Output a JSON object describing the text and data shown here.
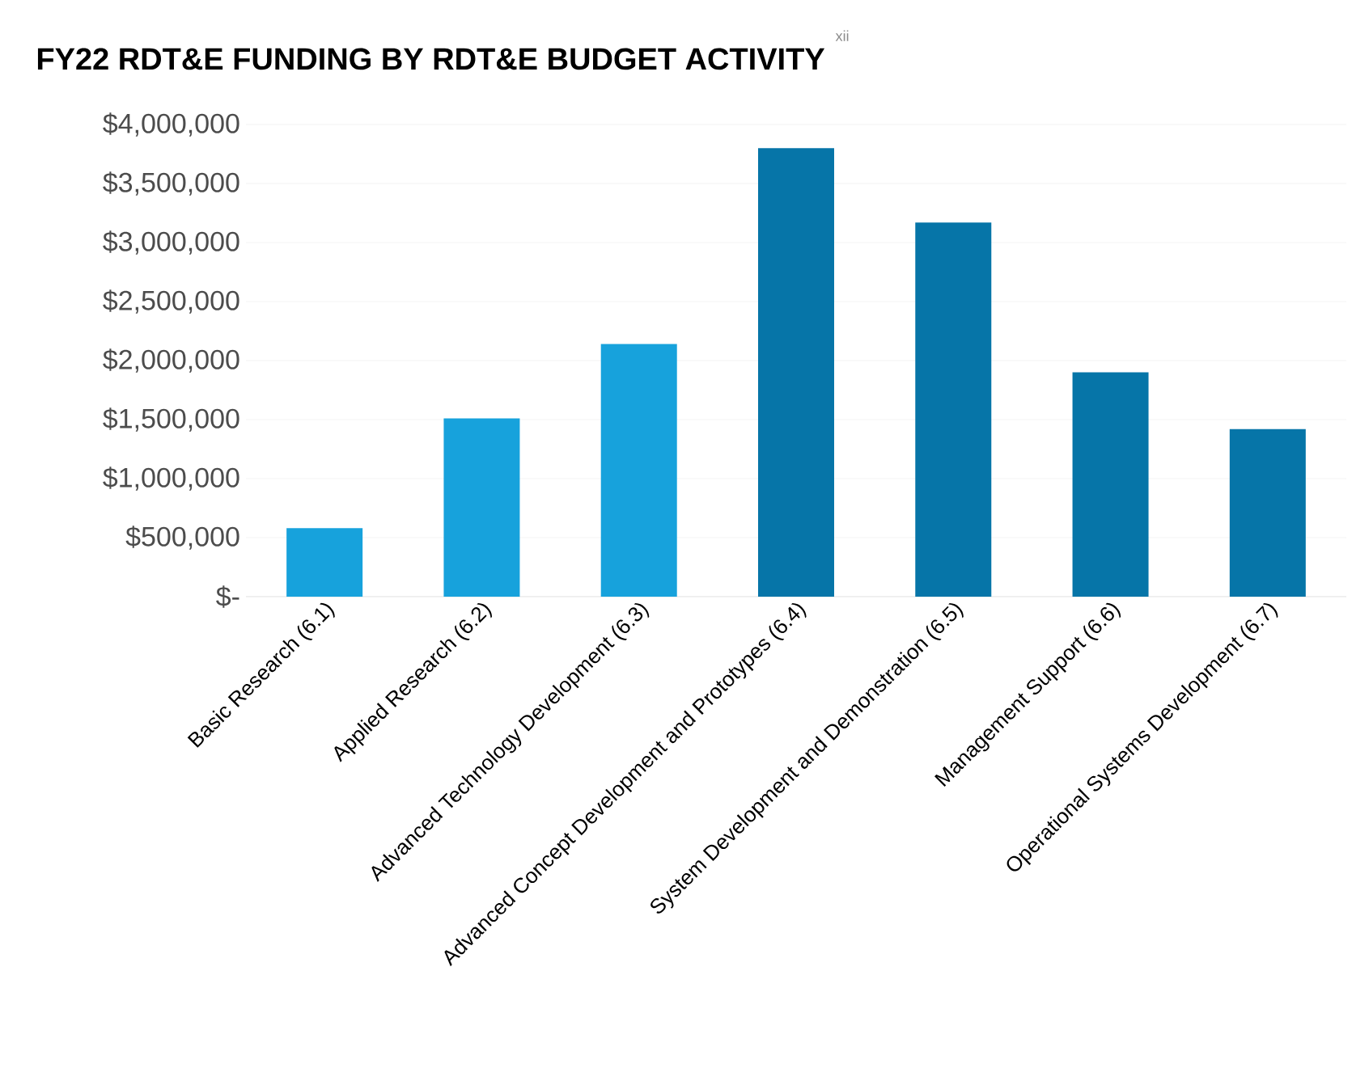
{
  "chart_data": {
    "type": "bar",
    "title": "FY22 RDT&E FUNDING BY RDT&E BUDGET ACTIVITY",
    "annotations": [
      "xii"
    ],
    "categories": [
      "Basic Research (6.1)",
      "Applied Research (6.2)",
      "Advanced Technology Development (6.3)",
      "Advanced Concept Development and Prototypes (6.4)",
      "System Development and Demonstration (6.5)",
      "Management Support (6.6)",
      "Operational Systems Development (6.7)"
    ],
    "values": [
      580000,
      1510000,
      2140000,
      3800000,
      3170000,
      1900000,
      1420000
    ],
    "colors": [
      "#17a2dc",
      "#17a2dc",
      "#17a2dc",
      "#0675a8",
      "#0675a8",
      "#0675a8",
      "#0675a8"
    ],
    "ylim": [
      0,
      4000000
    ],
    "yticks": [
      {
        "value": 0,
        "label": "$-"
      },
      {
        "value": 500000,
        "label": "$500,000"
      },
      {
        "value": 1000000,
        "label": "$1,000,000"
      },
      {
        "value": 1500000,
        "label": "$1,500,000"
      },
      {
        "value": 2000000,
        "label": "$2,000,000"
      },
      {
        "value": 2500000,
        "label": "$2,500,000"
      },
      {
        "value": 3000000,
        "label": "$3,000,000"
      },
      {
        "value": 3500000,
        "label": "$3,500,000"
      },
      {
        "value": 4000000,
        "label": "$4,000,000"
      }
    ],
    "grid": "y"
  }
}
